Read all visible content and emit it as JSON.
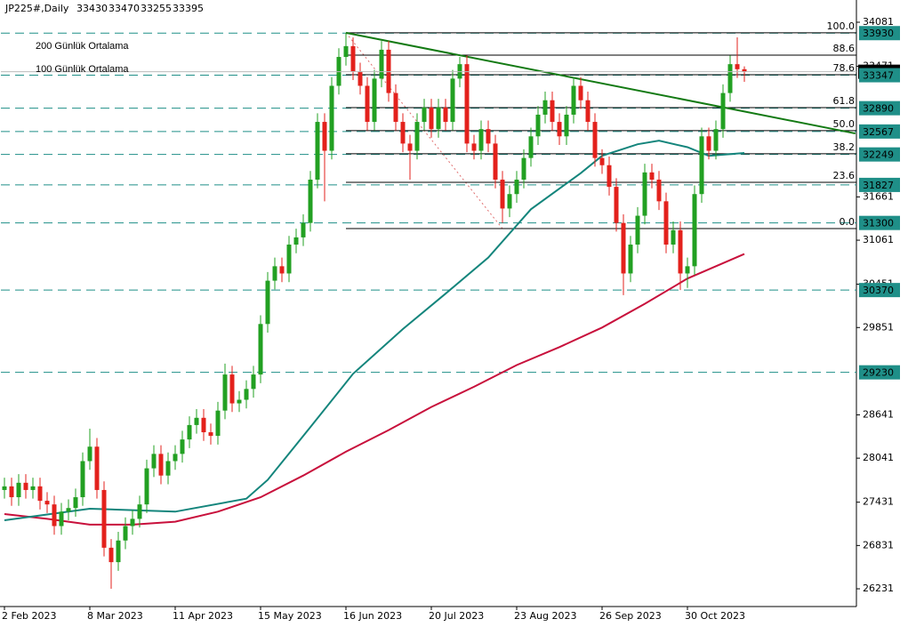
{
  "chart_data": {
    "type": "candlestick",
    "title": "JP225#,Daily",
    "categories": [
      "2 Feb 2023",
      null,
      null,
      null,
      null,
      null,
      null,
      null,
      null,
      null,
      null,
      null,
      "8 Mar 2023",
      null,
      null,
      null,
      null,
      null,
      null,
      null,
      null,
      null,
      null,
      null,
      "11 Apr 2023",
      null,
      null,
      null,
      null,
      null,
      null,
      null,
      null,
      null,
      null,
      null,
      "15 May 2023",
      null,
      null,
      null,
      null,
      null,
      null,
      null,
      null,
      null,
      null,
      null,
      "16 Jun 2023",
      null,
      null,
      null,
      null,
      null,
      null,
      null,
      null,
      null,
      null,
      null,
      "20 Jul 2023",
      null,
      null,
      null,
      null,
      null,
      null,
      null,
      null,
      null,
      null,
      null,
      "23 Aug 2023",
      null,
      null,
      null,
      null,
      null,
      null,
      null,
      null,
      null,
      null,
      null,
      "26 Sep 2023",
      null,
      null,
      null,
      null,
      null,
      null,
      null,
      null,
      null,
      null,
      null,
      "30 Oct 2023",
      null,
      null,
      null,
      null,
      null,
      null,
      null,
      null
    ],
    "candles": {
      "open": [
        27600,
        27650,
        27500,
        27700,
        27600,
        27650,
        27450,
        27400,
        27100,
        27300,
        27350,
        27500,
        28000,
        28200,
        27600,
        26800,
        26600,
        26900,
        27100,
        27200,
        27400,
        27900,
        28100,
        27800,
        28000,
        28100,
        28300,
        28500,
        28600,
        28400,
        28350,
        28700,
        29200,
        28800,
        28850,
        29000,
        29200,
        29900,
        30500,
        30700,
        30600,
        31000,
        31100,
        31300,
        31900,
        32700,
        32300,
        33200,
        33600,
        33750,
        33400,
        33200,
        32700,
        33300,
        33700,
        33100,
        32700,
        32400,
        32300,
        32700,
        32900,
        32600,
        32900,
        32700,
        33300,
        33500,
        32400,
        32300,
        32600,
        32400,
        31900,
        31500,
        31700,
        31900,
        32200,
        32500,
        32800,
        33000,
        32700,
        32500,
        32800,
        33200,
        33000,
        32700,
        32200,
        32100,
        31800,
        31300,
        30600,
        31000,
        31400,
        32000,
        31900,
        31600,
        31000,
        31200,
        30600,
        30700,
        31700,
        32500,
        32300,
        32600,
        33100,
        33500,
        33430
      ],
      "high": [
        27770,
        27770,
        27820,
        27820,
        27770,
        27770,
        27570,
        27520,
        27420,
        27470,
        27620,
        28120,
        28450,
        28320,
        27720,
        26920,
        27020,
        27220,
        27320,
        27520,
        28020,
        28220,
        28220,
        28120,
        28220,
        28420,
        28620,
        28720,
        28720,
        28520,
        28820,
        29350,
        29320,
        28970,
        29120,
        29320,
        30020,
        30620,
        30820,
        30820,
        31120,
        31220,
        31420,
        32020,
        32820,
        32820,
        33320,
        33720,
        33935,
        33870,
        33520,
        33320,
        33420,
        33820,
        33820,
        33220,
        32820,
        32520,
        32820,
        33020,
        33020,
        33020,
        33020,
        33420,
        33600,
        33620,
        32520,
        32720,
        32720,
        32520,
        32020,
        31820,
        32020,
        32320,
        32620,
        32920,
        33120,
        33120,
        32820,
        32920,
        33320,
        33320,
        33120,
        32820,
        32320,
        32220,
        31920,
        31420,
        31120,
        31520,
        32120,
        32120,
        32020,
        31720,
        31320,
        31320,
        30820,
        31820,
        32620,
        32620,
        32720,
        33220,
        33620,
        33872,
        33470
      ],
      "low": [
        27480,
        27380,
        27380,
        27480,
        27480,
        27330,
        27280,
        26980,
        26980,
        27180,
        27230,
        27380,
        27880,
        27480,
        26680,
        26231,
        26480,
        26780,
        26980,
        27080,
        27280,
        27780,
        27680,
        27680,
        27880,
        27980,
        28180,
        28380,
        28280,
        28230,
        28230,
        28580,
        28680,
        28680,
        28730,
        28880,
        29080,
        29780,
        30380,
        30480,
        30480,
        30880,
        30980,
        31180,
        31780,
        31600,
        32180,
        33080,
        33480,
        33280,
        33080,
        32580,
        32580,
        33180,
        32980,
        32580,
        32280,
        31900,
        32180,
        32580,
        32480,
        32480,
        32580,
        32580,
        33180,
        32280,
        32180,
        32180,
        32280,
        31780,
        31300,
        31380,
        31580,
        31780,
        32080,
        32380,
        32680,
        32580,
        32380,
        32380,
        32680,
        32880,
        32580,
        32080,
        31980,
        31680,
        31180,
        30300,
        30480,
        30880,
        31280,
        31780,
        31480,
        30880,
        30880,
        30370,
        30400,
        30580,
        31580,
        32180,
        32180,
        32480,
        32980,
        33310,
        33255
      ],
      "close": [
        27650,
        27500,
        27700,
        27600,
        27650,
        27450,
        27400,
        27100,
        27300,
        27350,
        27500,
        28000,
        28200,
        27600,
        26800,
        26600,
        26900,
        27100,
        27200,
        27400,
        27900,
        28100,
        27800,
        28000,
        28100,
        28300,
        28500,
        28600,
        28400,
        28350,
        28700,
        29200,
        28800,
        28850,
        29000,
        29200,
        29900,
        30500,
        30700,
        30600,
        31000,
        31100,
        31300,
        31900,
        32700,
        32300,
        33200,
        33600,
        33750,
        33400,
        33200,
        32700,
        33300,
        33700,
        33100,
        32700,
        32400,
        32300,
        32700,
        32900,
        32600,
        32900,
        32700,
        33300,
        33500,
        32400,
        32300,
        32600,
        32400,
        31900,
        31500,
        31700,
        31900,
        32200,
        32500,
        32800,
        33000,
        32700,
        32500,
        32800,
        33200,
        33000,
        32700,
        32200,
        32100,
        31800,
        31300,
        30600,
        31000,
        31400,
        32000,
        31900,
        31600,
        31000,
        31200,
        30600,
        30700,
        31700,
        32500,
        32300,
        32600,
        33100,
        33500,
        33430,
        33395
      ]
    },
    "up_color": "#22a022",
    "down_color": "#e3211c",
    "series": [
      {
        "name": "200 Günlük Ortalama",
        "color": "#c8103c",
        "x": [
          0,
          6,
          12,
          18,
          24,
          30,
          36,
          42,
          48,
          54,
          60,
          66,
          72,
          78,
          84,
          90,
          96,
          104
        ],
        "values": [
          27266,
          27200,
          27120,
          27120,
          27160,
          27300,
          27500,
          27800,
          28130,
          28430,
          28750,
          29030,
          29330,
          29580,
          29850,
          30180,
          30530,
          30870
        ]
      },
      {
        "name": "100 Günlük Ortalama",
        "color": "#14857c",
        "x": [
          0,
          12,
          24,
          34,
          37,
          43,
          49,
          56,
          62,
          68,
          74,
          81,
          84,
          89,
          92,
          96,
          99,
          104
        ],
        "values": [
          27180,
          27340,
          27300,
          27480,
          27740,
          28470,
          29210,
          29830,
          30320,
          30820,
          31490,
          31990,
          32230,
          32390,
          32440,
          32350,
          32230,
          32270
        ]
      }
    ],
    "trendline": {
      "color": "#137a13",
      "x": [
        48,
        119.6
      ],
      "y": [
        33935,
        32540
      ]
    },
    "levels": {
      "color": "#1f8f88",
      "values": [
        33930,
        33347,
        32890,
        32567,
        32249,
        31827,
        31300,
        30370,
        29230
      ]
    },
    "fib": {
      "x": [
        48,
        70
      ],
      "y": [
        33935,
        31222
      ],
      "levels": [
        {
          "value": 100,
          "label": "100.0"
        },
        88.6,
        78.6,
        61.8,
        {
          "value": 50,
          "label": "50.0"
        },
        38.2,
        23.6,
        {
          "value": 0,
          "label": "0.0"
        }
      ]
    },
    "xlim": [
      -0.5,
      119.75
    ],
    "ylim": [
      25985,
      34389
    ],
    "yticks": [
      34081,
      33471,
      31661,
      31061,
      30451,
      29851,
      28641,
      28041,
      27431,
      26831,
      26231
    ]
  }
}
